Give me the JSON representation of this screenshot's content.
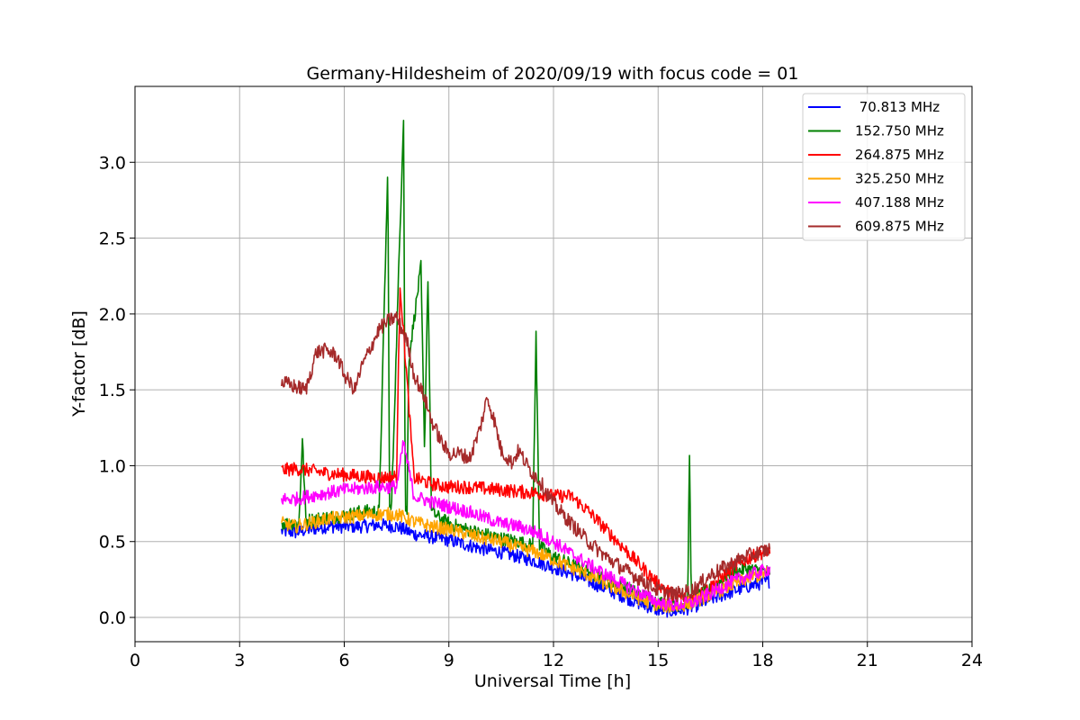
{
  "chart_data": {
    "type": "line",
    "title": "Germany-Hildesheim of 2020/09/19 with focus code = 01",
    "xlabel": "Universal Time [h]",
    "ylabel": "Y-factor [dB]",
    "xlim": [
      0,
      24
    ],
    "ylim": [
      -0.16,
      3.5
    ],
    "xticks": [
      0,
      3,
      6,
      9,
      12,
      15,
      18,
      21,
      24
    ],
    "xtick_labels": [
      "0",
      "3",
      "6",
      "9",
      "12",
      "15",
      "18",
      "21",
      "24"
    ],
    "yticks": [
      0.0,
      0.5,
      1.0,
      1.5,
      2.0,
      2.5,
      3.0
    ],
    "ytick_labels": [
      "0.0",
      "0.5",
      "1.0",
      "1.5",
      "2.0",
      "2.5",
      "3.0"
    ],
    "grid": true,
    "legend_position": "top-right",
    "series": [
      {
        "name": " 70.813 MHz",
        "color": "#0000ff",
        "x": [
          4.2,
          4.6,
          5.0,
          5.5,
          6.0,
          6.5,
          7.0,
          7.5,
          8.0,
          8.5,
          9.0,
          9.5,
          10.0,
          10.5,
          11.0,
          11.5,
          12.0,
          12.5,
          13.0,
          13.5,
          14.0,
          14.5,
          15.0,
          15.5,
          16.0,
          16.5,
          17.0,
          17.5,
          18.2
        ],
        "y": [
          0.57,
          0.56,
          0.58,
          0.6,
          0.6,
          0.6,
          0.61,
          0.6,
          0.55,
          0.53,
          0.51,
          0.48,
          0.45,
          0.43,
          0.4,
          0.37,
          0.33,
          0.29,
          0.24,
          0.19,
          0.14,
          0.09,
          0.05,
          0.04,
          0.07,
          0.12,
          0.16,
          0.2,
          0.24
        ]
      },
      {
        "name": "152.750 MHz",
        "color": "#008000",
        "x": [
          4.2,
          4.7,
          4.8,
          4.9,
          5.5,
          6.0,
          6.5,
          7.0,
          7.25,
          7.3,
          7.35,
          7.7,
          7.75,
          7.8,
          7.85,
          8.2,
          8.3,
          8.4,
          8.5,
          8.6,
          8.7,
          9.0,
          9.5,
          10.0,
          10.5,
          11.0,
          11.4,
          11.5,
          11.6,
          11.7,
          12.0,
          12.5,
          13.0,
          13.5,
          14.0,
          14.5,
          15.0,
          15.5,
          15.85,
          15.9,
          15.95,
          16.5,
          17.0,
          17.5,
          18.2
        ],
        "y": [
          0.62,
          0.62,
          1.17,
          0.64,
          0.66,
          0.67,
          0.7,
          0.7,
          2.97,
          0.72,
          0.7,
          3.31,
          0.72,
          0.7,
          1.7,
          2.31,
          1.1,
          2.25,
          0.7,
          0.68,
          0.66,
          0.62,
          0.58,
          0.55,
          0.52,
          0.5,
          0.47,
          1.87,
          0.47,
          0.45,
          0.4,
          0.35,
          0.3,
          0.25,
          0.2,
          0.15,
          0.1,
          0.08,
          0.1,
          1.09,
          0.12,
          0.18,
          0.28,
          0.32,
          0.3
        ]
      },
      {
        "name": "264.875 MHz",
        "color": "#ff0000",
        "x": [
          4.2,
          4.6,
          5.0,
          5.5,
          6.0,
          6.5,
          7.0,
          7.5,
          7.6,
          8.0,
          8.5,
          9.0,
          9.5,
          10.0,
          10.5,
          11.0,
          11.5,
          12.0,
          12.5,
          13.0,
          13.5,
          14.0,
          14.5,
          15.0,
          15.5,
          16.0,
          16.5,
          17.0,
          17.5,
          18.2
        ],
        "y": [
          0.97,
          0.98,
          0.97,
          0.95,
          0.94,
          0.93,
          0.92,
          0.93,
          2.2,
          0.92,
          0.88,
          0.86,
          0.86,
          0.85,
          0.84,
          0.83,
          0.82,
          0.8,
          0.8,
          0.7,
          0.58,
          0.46,
          0.34,
          0.22,
          0.14,
          0.12,
          0.2,
          0.3,
          0.38,
          0.45
        ]
      },
      {
        "name": "325.250 MHz",
        "color": "#ffa500",
        "x": [
          4.2,
          4.6,
          5.0,
          5.5,
          6.0,
          6.5,
          7.0,
          7.5,
          8.0,
          8.5,
          9.0,
          9.5,
          10.0,
          10.5,
          11.0,
          11.5,
          12.0,
          12.5,
          13.0,
          13.5,
          14.0,
          14.5,
          15.0,
          15.5,
          16.0,
          16.5,
          17.0,
          17.5,
          18.2
        ],
        "y": [
          0.62,
          0.6,
          0.62,
          0.65,
          0.66,
          0.67,
          0.68,
          0.68,
          0.63,
          0.6,
          0.58,
          0.55,
          0.52,
          0.5,
          0.46,
          0.43,
          0.38,
          0.33,
          0.28,
          0.22,
          0.17,
          0.12,
          0.08,
          0.07,
          0.1,
          0.15,
          0.2,
          0.25,
          0.3
        ]
      },
      {
        "name": "407.188 MHz",
        "color": "#ff00ff",
        "x": [
          4.2,
          4.6,
          5.0,
          5.5,
          6.0,
          6.5,
          7.0,
          7.5,
          7.7,
          8.0,
          8.5,
          9.0,
          9.5,
          10.0,
          10.5,
          11.0,
          11.5,
          12.0,
          12.5,
          13.0,
          13.5,
          14.0,
          14.5,
          15.0,
          15.5,
          16.0,
          16.5,
          17.0,
          17.5,
          18.2
        ],
        "y": [
          0.78,
          0.78,
          0.8,
          0.82,
          0.84,
          0.85,
          0.86,
          0.86,
          1.15,
          0.8,
          0.76,
          0.73,
          0.7,
          0.66,
          0.62,
          0.6,
          0.56,
          0.5,
          0.42,
          0.35,
          0.28,
          0.22,
          0.16,
          0.1,
          0.08,
          0.1,
          0.16,
          0.22,
          0.27,
          0.32
        ]
      },
      {
        "name": "609.875 MHz",
        "color": "#a52a2a",
        "x": [
          4.2,
          4.6,
          4.9,
          5.2,
          5.5,
          5.8,
          6.0,
          6.3,
          6.5,
          6.8,
          7.0,
          7.3,
          7.5,
          7.8,
          8.0,
          8.3,
          8.5,
          8.8,
          9.0,
          9.3,
          9.6,
          9.9,
          10.1,
          10.3,
          10.5,
          10.8,
          11.0,
          11.3,
          11.6,
          12.0,
          12.5,
          13.0,
          13.5,
          14.0,
          14.5,
          15.0,
          15.5,
          16.0,
          16.5,
          17.0,
          17.5,
          18.2
        ],
        "y": [
          1.55,
          1.52,
          1.5,
          1.75,
          1.76,
          1.72,
          1.6,
          1.5,
          1.65,
          1.8,
          1.9,
          1.96,
          1.98,
          1.82,
          1.6,
          1.45,
          1.3,
          1.15,
          1.08,
          1.08,
          1.05,
          1.25,
          1.45,
          1.3,
          1.1,
          1.02,
          1.1,
          0.98,
          0.9,
          0.75,
          0.62,
          0.5,
          0.4,
          0.32,
          0.25,
          0.18,
          0.15,
          0.18,
          0.28,
          0.34,
          0.4,
          0.45
        ]
      }
    ]
  }
}
